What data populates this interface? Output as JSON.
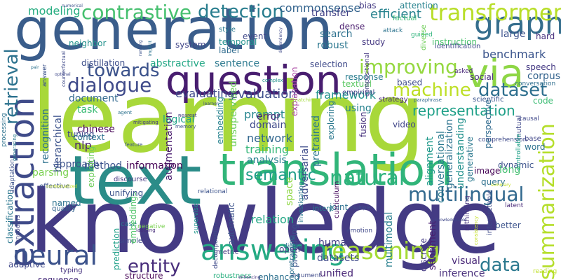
{
  "background_color": "#ffffff",
  "words": [
    {
      "text": "generation",
      "color": "#3a5d8b"
    },
    {
      "text": "learning",
      "color": "#a8d83a"
    },
    {
      "text": "knowledge",
      "color": "#443b84"
    },
    {
      "text": "text",
      "color": "#2b8c88"
    },
    {
      "text": "translation",
      "color": "#31b579"
    },
    {
      "text": "question",
      "color": "#481d6f"
    },
    {
      "text": "extraction",
      "color": "#3f4b89"
    },
    {
      "text": "via",
      "color": "#8ed645"
    },
    {
      "text": "graph",
      "color": "#356e8d"
    },
    {
      "text": "neural",
      "color": "#3b528b"
    },
    {
      "text": "answering",
      "color": "#24aa83"
    },
    {
      "text": "reasoning",
      "color": "#a5db36"
    },
    {
      "text": "multilingual",
      "color": "#31688e"
    },
    {
      "text": "natural",
      "color": "#2db27d"
    },
    {
      "text": "summarization",
      "color": "#b5de2b"
    },
    {
      "text": "transformer",
      "color": "#b8de29"
    },
    {
      "text": "contrastive",
      "color": "#46c06f"
    },
    {
      "text": "detection",
      "color": "#287d8e"
    },
    {
      "text": "dialogue",
      "color": "#3f4a8a"
    },
    {
      "text": "machine",
      "color": "#bddf26"
    },
    {
      "text": "dataset",
      "color": "#2e6f8e"
    },
    {
      "text": "towards",
      "color": "#3b528b"
    },
    {
      "text": "improving",
      "color": "#95d840"
    },
    {
      "text": "retrieval",
      "color": "#2c728e"
    },
    {
      "text": "entity",
      "color": "#472c7a"
    },
    {
      "text": "data",
      "color": "#2a788e"
    },
    {
      "text": "modeling",
      "color": "#27ad81"
    },
    {
      "text": "efficient",
      "color": "#26828e"
    },
    {
      "text": "representation",
      "color": "#1fa088"
    },
    {
      "text": "benchmark",
      "color": "#3a548c"
    },
    {
      "text": "framework",
      "color": "#21918c"
    },
    {
      "text": "evaluating",
      "color": "#3e4989"
    },
    {
      "text": "evaluation",
      "color": "#3d4d8a"
    },
    {
      "text": "commonsense",
      "color": "#33638d"
    },
    {
      "text": "transfer",
      "color": "#424186"
    },
    {
      "text": "search",
      "color": "#2d718e"
    },
    {
      "text": "robust",
      "color": "#2a768e"
    },
    {
      "text": "large",
      "color": "#3b518b"
    },
    {
      "text": "semantic",
      "color": "#1f9e89"
    },
    {
      "text": "relation",
      "color": "#22a785"
    },
    {
      "text": "multimodal",
      "color": "#277f8e"
    },
    {
      "text": "inference",
      "color": "#472d7b"
    },
    {
      "text": "unified",
      "color": "#482576"
    },
    {
      "text": "visual",
      "color": "#482878"
    },
    {
      "text": "datasets",
      "color": "#3e4a89"
    },
    {
      "text": "human",
      "color": "#433e85"
    },
    {
      "text": "sentiment",
      "color": "#481f70"
    },
    {
      "text": "conversational",
      "color": "#29798e"
    },
    {
      "text": "generalization",
      "color": "#2c728e"
    },
    {
      "text": "understanding",
      "color": "#21918c"
    },
    {
      "text": "alignment",
      "color": "#1f998a"
    },
    {
      "text": "adversarial",
      "color": "#3e4c8a"
    },
    {
      "text": "pretrained",
      "color": "#2a788e"
    },
    {
      "text": "network",
      "color": "#31678e"
    },
    {
      "text": "training",
      "color": "#35b779"
    },
    {
      "text": "analysis",
      "color": "#26828e"
    },
    {
      "text": "domain",
      "color": "#3e4989"
    },
    {
      "text": "prompt",
      "color": "#25848e"
    },
    {
      "text": "error",
      "color": "#482475"
    },
    {
      "text": "nlp",
      "color": "#481f70"
    },
    {
      "text": "task",
      "color": "#3bbb75"
    },
    {
      "text": "document",
      "color": "#31688e"
    },
    {
      "text": "information",
      "color": "#440154"
    },
    {
      "text": "approach",
      "color": "#3b528b"
    },
    {
      "text": "parsing",
      "color": "#7ad151"
    },
    {
      "text": "chinese",
      "color": "#440154"
    },
    {
      "text": "recognition",
      "color": "#2d718e"
    },
    {
      "text": "hierarchical",
      "color": "#3b528b"
    },
    {
      "text": "classification",
      "color": "#2a768e"
    },
    {
      "text": "augmentation",
      "color": "#481a6c"
    },
    {
      "text": "embedding",
      "color": "#26828e"
    },
    {
      "text": "unsupervised",
      "color": "#6ccd5a"
    },
    {
      "text": "abstractive",
      "color": "#22a785"
    },
    {
      "text": "sentence",
      "color": "#2a788e"
    },
    {
      "text": "system",
      "color": "#404688"
    },
    {
      "text": "event",
      "color": "#3f4788"
    },
    {
      "text": "label",
      "color": "#2f6b8e"
    },
    {
      "text": "temporal",
      "color": "#21908d"
    },
    {
      "text": "explanation",
      "color": "#ae4fa7"
    },
    {
      "text": "selection",
      "color": "#3e4989"
    },
    {
      "text": "response",
      "color": "#287c8e"
    },
    {
      "text": "textual",
      "color": "#5cc863"
    },
    {
      "text": "based",
      "color": "#3e4a89"
    },
    {
      "text": "corpus",
      "color": "#33638d"
    },
    {
      "text": "speech",
      "color": "#443983"
    },
    {
      "text": "using",
      "color": "#26828e"
    },
    {
      "text": "fusion",
      "color": "#46317e"
    },
    {
      "text": "video",
      "color": "#404588"
    },
    {
      "text": "logical",
      "color": "#1fa188"
    },
    {
      "text": "tuning",
      "color": "#3f4889"
    },
    {
      "text": "context",
      "color": "#2c718e"
    },
    {
      "text": "method",
      "color": "#3b528b"
    },
    {
      "text": "distillation",
      "color": "#3d4e8a"
    },
    {
      "text": "neighbor",
      "color": "#21918c"
    },
    {
      "text": "style",
      "color": "#2a788e"
    },
    {
      "text": "bias",
      "color": "#443a83"
    },
    {
      "text": "attention",
      "color": "#26828e"
    },
    {
      "text": "dense",
      "color": "#481b6d"
    },
    {
      "text": "study",
      "color": "#453882"
    },
    {
      "text": "hard",
      "color": "#472f7d"
    },
    {
      "text": "instruction",
      "color": "#4ac16d"
    },
    {
      "text": "factual",
      "color": "#3bbb75"
    },
    {
      "text": "attack",
      "color": "#2c738e"
    },
    {
      "text": "guided",
      "color": "#2fb47c"
    },
    {
      "text": "identification",
      "color": "#3f4889"
    },
    {
      "text": "social",
      "color": "#472c7a"
    },
    {
      "text": "diverse",
      "color": "#6ece58"
    },
    {
      "text": "asked",
      "color": "#482677"
    },
    {
      "text": "conversation",
      "color": "#2e6e8e"
    },
    {
      "text": "scientific",
      "color": "#3a548c"
    },
    {
      "text": "code",
      "color": "#3dbc74"
    },
    {
      "text": "causal",
      "color": "#3f4889"
    },
    {
      "text": "empirical",
      "color": "#404688"
    },
    {
      "text": "compositional",
      "color": "#453882"
    },
    {
      "text": "strategy",
      "color": "#482576"
    },
    {
      "text": "paraphrase",
      "color": "#31688e"
    },
    {
      "text": "mutual",
      "color": "#3f4889"
    },
    {
      "text": "comprehension",
      "color": "#3e4989"
    },
    {
      "text": "perspective",
      "color": "#306a8e"
    },
    {
      "text": "generative",
      "color": "#2a788e"
    },
    {
      "text": "dynamic",
      "color": "#3b528b"
    },
    {
      "text": "base",
      "color": "#404688"
    },
    {
      "text": "word",
      "color": "#2c718e"
    },
    {
      "text": "long",
      "color": "#44bf70"
    },
    {
      "text": "controllable",
      "color": "#1fa088"
    },
    {
      "text": "image",
      "color": "#440154"
    },
    {
      "text": "query",
      "color": "#2d708e"
    },
    {
      "text": "latent",
      "color": "#482878"
    },
    {
      "text": "better",
      "color": "#3b528b"
    },
    {
      "text": "interpretable",
      "color": "#3e4a89"
    },
    {
      "text": "summary",
      "color": "#c2df23"
    },
    {
      "text": "consistency",
      "color": "#c5e021"
    },
    {
      "text": "reading",
      "color": "#bddf26"
    },
    {
      "text": "rethinking",
      "color": "#46337f"
    },
    {
      "text": "discrete",
      "color": "#443a83"
    },
    {
      "text": "multiple",
      "color": "#3b528b"
    },
    {
      "text": "emotion",
      "color": "#3f4788"
    },
    {
      "text": "intent",
      "color": "#26828e"
    },
    {
      "text": "joint",
      "color": "#2d708e"
    },
    {
      "text": "curriculum",
      "color": "#46085c"
    },
    {
      "text": "space",
      "color": "#8fd744"
    },
    {
      "text": "relational",
      "color": "#3b528b"
    },
    {
      "text": "supervised",
      "color": "#1f968b"
    },
    {
      "text": "prompting",
      "color": "#3a538b"
    },
    {
      "text": "open",
      "color": "#433e85"
    },
    {
      "text": "pretraining",
      "color": "#2e6f8e"
    },
    {
      "text": "investigating",
      "color": "#2a778e"
    },
    {
      "text": "dialog",
      "color": "#2c738e"
    },
    {
      "text": "argument",
      "color": "#3e4a89"
    },
    {
      "text": "enhanced",
      "color": "#2d708e"
    },
    {
      "text": "robustness",
      "color": "#29af7f"
    },
    {
      "text": "enhancing",
      "color": "#46337f"
    },
    {
      "text": "decomposition",
      "color": "#3e4989"
    },
    {
      "text": "metric",
      "color": "#453882"
    },
    {
      "text": "automatic",
      "color": "#3b528b"
    },
    {
      "text": "structure",
      "color": "#440154"
    },
    {
      "text": "simple",
      "color": "#3e4989"
    },
    {
      "text": "labeling",
      "color": "#472c7a"
    },
    {
      "text": "negative",
      "color": "#7ad151"
    },
    {
      "text": "case",
      "color": "#2a788e"
    },
    {
      "text": "typing",
      "color": "#46337f"
    },
    {
      "text": "embeddings",
      "color": "#50c46a"
    },
    {
      "text": "prediction",
      "color": "#1fa088"
    },
    {
      "text": "adaptive",
      "color": "#3f4788"
    },
    {
      "text": "sequence",
      "color": "#472d7b"
    },
    {
      "text": "encoders",
      "color": "#404688"
    },
    {
      "text": "adaptation",
      "color": "#3b528b"
    },
    {
      "text": "processing",
      "color": "#2c728e"
    },
    {
      "text": "generating",
      "color": "#2a788e"
    },
    {
      "text": "quality",
      "color": "#33638d"
    },
    {
      "text": "named",
      "color": "#2c728e"
    },
    {
      "text": "effective",
      "color": "#3b528b"
    },
    {
      "text": "discourse",
      "color": "#453882"
    },
    {
      "text": "contextualized",
      "color": "#c2df23"
    },
    {
      "text": "unifying",
      "color": "#3b528b"
    },
    {
      "text": "exploiting",
      "color": "#6ccd5a"
    },
    {
      "text": "feature",
      "color": "#3b528b"
    },
    {
      "text": "mitigating",
      "color": "#443983"
    },
    {
      "text": "agent",
      "color": "#2c728e"
    },
    {
      "text": "memory",
      "color": "#3b528b"
    },
    {
      "text": "nearest",
      "color": "#443983"
    },
    {
      "text": "exploring",
      "color": "#2a788e"
    },
    {
      "text": "complex",
      "color": "#21918c"
    },
    {
      "text": "matching",
      "color": "#a2da37"
    },
    {
      "text": "learner",
      "color": "#3e4989"
    },
    {
      "text": "optimal",
      "color": "#3f4889"
    },
    {
      "text": "pair",
      "color": "#2c728e"
    },
    {
      "text": "answer",
      "color": "#3b528b"
    },
    {
      "text": "counterfactual",
      "color": "#3e4989"
    },
    {
      "text": "numerical",
      "color": "#3b528b"
    },
    {
      "text": "ranking",
      "color": "#3b528b"
    },
    {
      "text": "implicit",
      "color": "#2c728e"
    },
    {
      "text": "dependency",
      "color": "#3e4989"
    },
    {
      "text": "knowledgeable",
      "color": "#3f4788"
    }
  ]
}
